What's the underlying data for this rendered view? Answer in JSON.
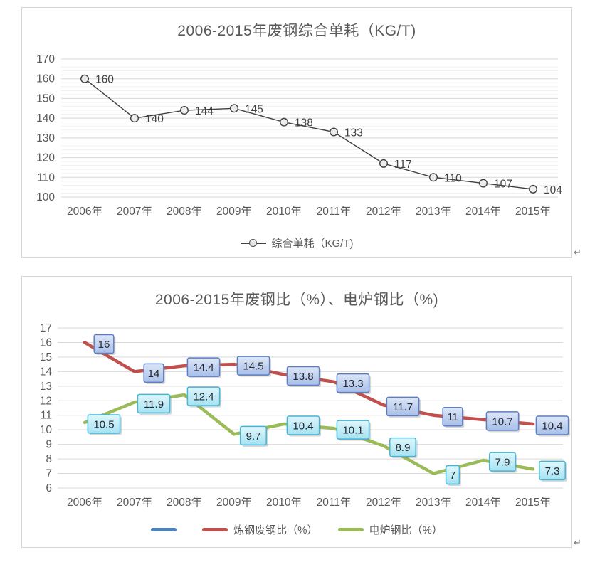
{
  "page": {
    "paragraph_mark": "↵"
  },
  "chart_data": [
    {
      "type": "line",
      "title": "2006-2015年废钢综合单耗（KG/T)",
      "categories": [
        "2006年",
        "2007年",
        "2008年",
        "2009年",
        "2010年",
        "2011年",
        "2012年",
        "2013年",
        "2014年",
        "2015年"
      ],
      "series": [
        {
          "name": "综合单耗（KG/T)",
          "values": [
            160,
            140,
            144,
            145,
            138,
            133,
            117,
            110,
            107,
            104
          ],
          "color": "#404040",
          "marker": "circle",
          "line_width": 1.4,
          "data_labels": "plain"
        }
      ],
      "ylim": [
        100,
        170
      ],
      "major_unit": 10,
      "minor_unit": 2,
      "grid": true,
      "legend_position": "bottom",
      "xlabel": "",
      "ylabel": "",
      "style": {
        "grid_color": "#d9d9d9",
        "grid_minor_color": "#f1f1f1",
        "axis_text_color": "#595959",
        "title_color": "#595959",
        "label_color": "#404040",
        "marker_fill": "#ececec",
        "marker_stroke": "#404040"
      }
    },
    {
      "type": "line",
      "title": "2006-2015年废钢比（%）、电炉钢比（%)",
      "categories": [
        "2006年",
        "2007年",
        "2008年",
        "2009年",
        "2010年",
        "2011年",
        "2012年",
        "2013年",
        "2014年",
        "2015年"
      ],
      "series": [
        {
          "name": "",
          "values": [],
          "color": "#4F81BD",
          "line_width": 4.5
        },
        {
          "name": "炼钢废钢比（%）",
          "values": [
            16,
            14,
            14.4,
            14.5,
            13.8,
            13.3,
            11.7,
            11,
            10.7,
            10.4
          ],
          "color": "#C0504D",
          "line_width": 4.5,
          "label_box": {
            "fill_top": "#dde7f8",
            "fill_bottom": "#a7bfe9",
            "border": "#5d7ec2",
            "text_color": "#26262e"
          }
        },
        {
          "name": "电炉钢比（%）",
          "values": [
            10.5,
            11.9,
            12.4,
            9.7,
            10.4,
            10.1,
            8.9,
            7,
            7.9,
            7.3
          ],
          "color": "#9BBB59",
          "line_width": 4.5,
          "label_box": {
            "fill_top": "#dff7fc",
            "fill_bottom": "#a5e2f2",
            "border": "#44b4d4",
            "text_color": "#26262e"
          }
        }
      ],
      "ylim": [
        6,
        17
      ],
      "major_unit": 1,
      "grid": true,
      "legend_position": "bottom",
      "xlabel": "",
      "ylabel": "",
      "style": {
        "grid_color": "#d9d9d9",
        "axis_text_color": "#595959",
        "title_color": "#595959"
      }
    }
  ]
}
